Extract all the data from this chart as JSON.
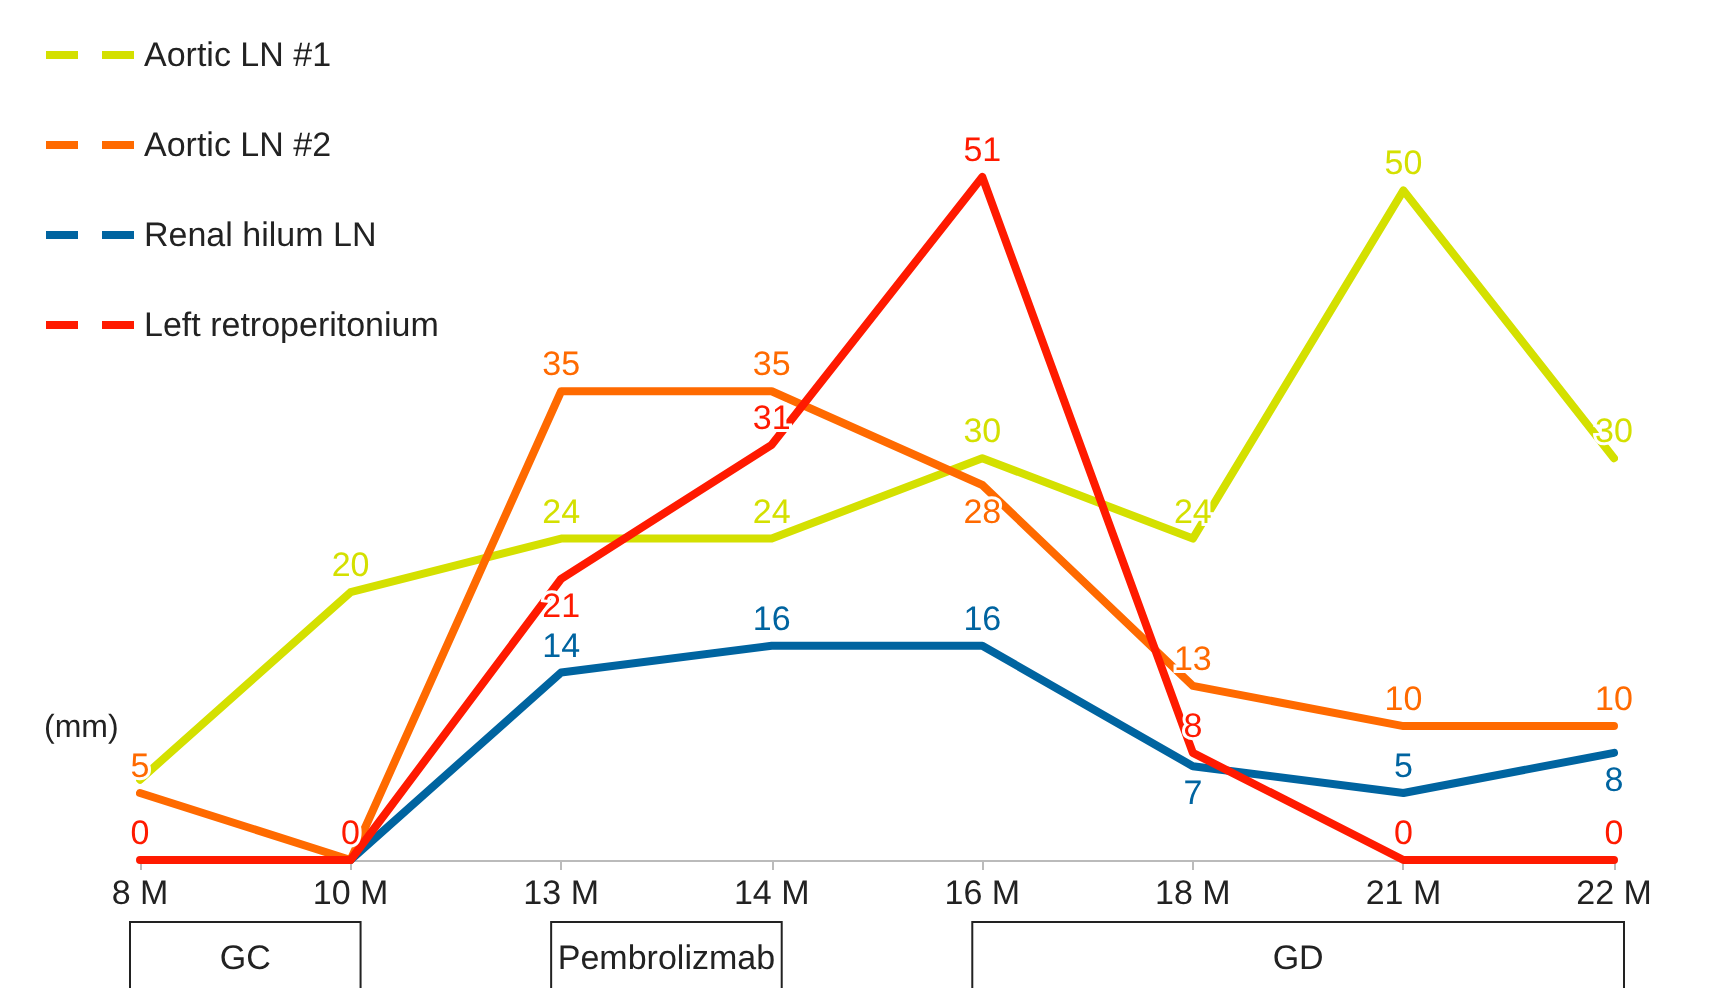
{
  "chart_data": {
    "type": "line",
    "ylabel": "(mm)",
    "categories": [
      "8 M",
      "10 M",
      "13 M",
      "14 M",
      "16 M",
      "18 M",
      "21 M",
      "22 M"
    ],
    "series": [
      {
        "name": "Aortic LN #1",
        "color": "#d4e000",
        "values": [
          6,
          20,
          24,
          24,
          30,
          24,
          50,
          30
        ],
        "value_labels": [
          null,
          "20",
          "24",
          "24",
          "30",
          "24",
          "50",
          "30"
        ]
      },
      {
        "name": "Aortic LN #2",
        "color": "#ff6a00",
        "values": [
          5,
          0,
          35,
          35,
          28,
          13,
          10,
          10
        ],
        "value_labels": [
          "5",
          null,
          "35",
          "35",
          "28",
          "13",
          "10",
          "10"
        ]
      },
      {
        "name": "Renal hilum LN",
        "color": "#0064a0",
        "values": [
          null,
          0,
          14,
          16,
          16,
          7,
          5,
          8
        ],
        "value_labels": [
          null,
          null,
          "14",
          "16",
          "16",
          "7",
          "5",
          "8"
        ]
      },
      {
        "name": "Left retroperitonium",
        "color": "#ff1a00",
        "values": [
          0,
          0,
          21,
          31,
          51,
          8,
          0,
          0
        ],
        "value_labels": [
          "0",
          "0",
          "21",
          "31",
          "51",
          "8",
          "0",
          "0"
        ]
      }
    ],
    "annotations": [
      "GC",
      "Pembrolizmab",
      "GD"
    ],
    "legend": "top left",
    "grid": false,
    "marker": "none",
    "line_style": "solid"
  }
}
